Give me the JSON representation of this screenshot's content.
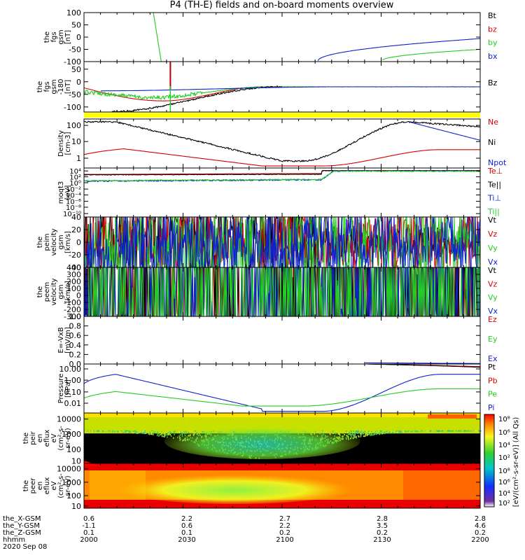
{
  "title": "P4 (TH-E) fields and on-board moments overview",
  "colors": {
    "black": "#000000",
    "red": "#d40000",
    "green": "#22cc22",
    "blue": "#1020d0",
    "yellow": "#ffff00"
  },
  "chart_data": [
    {
      "type": "line",
      "ylabel": [
        "the",
        "fgs",
        "gsm",
        "[nT]"
      ],
      "ylim": [
        -100,
        100
      ],
      "ticks": [
        "100",
        "50",
        "0",
        "-50",
        "-100"
      ],
      "legend": [
        {
          "label": "Bt",
          "color": "black"
        },
        {
          "label": "bz",
          "color": "red"
        },
        {
          "label": "by",
          "color": "green"
        },
        {
          "label": "bx",
          "color": "blue"
        }
      ]
    },
    {
      "type": "line",
      "ylabel": [
        "the",
        "fgs",
        "gsm",
        "-180",
        "[nT]"
      ],
      "ylim": [
        -120,
        80
      ],
      "ticks": [
        "50",
        "0",
        "-50",
        "-100"
      ],
      "legend": [
        {
          "label": "Bz",
          "color": "black"
        }
      ]
    },
    {
      "type": "line",
      "ylabel": [
        "Density",
        "[cm-3]"
      ],
      "scale": "log",
      "ticks": [
        "100",
        "10",
        "1"
      ],
      "legend": [
        {
          "label": "Ne",
          "color": "red"
        },
        {
          "label": "Ni",
          "color": "black"
        },
        {
          "label": "Npot",
          "color": "blue"
        }
      ]
    },
    {
      "type": "line",
      "ylabel": [
        "moqt3",
        "[eV]"
      ],
      "scale": "log",
      "ticks": [
        "10⁴",
        "10²",
        "10⁰",
        "10⁻²",
        "10⁻⁴",
        "10⁻⁶",
        "10⁻⁸",
        "10⁻¹⁰"
      ],
      "legend": [
        {
          "label": "Te⊥",
          "color": "red"
        },
        {
          "label": "Te||",
          "color": "black"
        },
        {
          "label": "Ti⊥",
          "color": "blue"
        },
        {
          "label": "Ti||",
          "color": "green"
        }
      ]
    },
    {
      "type": "line",
      "ylabel": [
        "the",
        "peim",
        "velocity",
        "gsm",
        "[km/s]"
      ],
      "ylim": [
        -40,
        40
      ],
      "ticks": [
        "40",
        "20",
        "0",
        "-20",
        "-40"
      ],
      "legend": [
        {
          "label": "Vt",
          "color": "black"
        },
        {
          "label": "Vz",
          "color": "red"
        },
        {
          "label": "Vy",
          "color": "green"
        },
        {
          "label": "Vx",
          "color": "blue"
        }
      ]
    },
    {
      "type": "line",
      "ylabel": [
        "the",
        "peem",
        "velocity",
        "gsm",
        "[km/s]"
      ],
      "ylim": [
        -300,
        400
      ],
      "ticks": [
        "400",
        "300",
        "200",
        "100",
        "0",
        "-100",
        "-200",
        "-300"
      ],
      "legend": [
        {
          "label": "Vt",
          "color": "black"
        },
        {
          "label": "Vz",
          "color": "red"
        },
        {
          "label": "Vy",
          "color": "green"
        },
        {
          "label": "Vx",
          "color": "blue"
        }
      ]
    },
    {
      "type": "line",
      "ylabel": [
        "E=-VxB",
        "[mV/m]"
      ],
      "ylim": [
        0,
        1
      ],
      "ticks": [
        "1.0",
        "0.8",
        "0.6",
        "0.4",
        "0.2",
        "0.0"
      ],
      "legend": [
        {
          "label": "Ez",
          "color": "red"
        },
        {
          "label": "Ey",
          "color": "green"
        },
        {
          "label": "Ex",
          "color": "blue"
        }
      ]
    },
    {
      "type": "line",
      "ylabel": [
        "Pressure",
        "[nPa]"
      ],
      "scale": "log",
      "ticks": [
        "10.00",
        "1.00",
        "0.10",
        "0.01"
      ],
      "legend": [
        {
          "label": "Pt",
          "color": "black"
        },
        {
          "label": "Pb",
          "color": "red"
        },
        {
          "label": "Pe",
          "color": "green"
        },
        {
          "label": "Pi",
          "color": "blue"
        }
      ]
    },
    {
      "type": "heatmap",
      "ylabel": [
        "the",
        "peir",
        "en",
        "eflux",
        "eV",
        "(cm²-s-",
        "sr-eV)"
      ],
      "scale": "log",
      "ticks": [
        "10000",
        "1000",
        "100",
        "10"
      ]
    },
    {
      "type": "heatmap",
      "ylabel": [
        "the",
        "peer",
        "en",
        "eflux",
        "eV",
        "(cm²-s-",
        "sr-eV)"
      ],
      "scale": "log",
      "ticks": [
        "10000",
        "1000",
        "100",
        "10"
      ]
    }
  ],
  "colorbar": {
    "label": "[eV/(cm²-s-sr-eV)] (All Qs)",
    "ticks": [
      "10⁸",
      "10⁶",
      "10⁴",
      "10²",
      "10⁸",
      "10⁶",
      "10⁴",
      "10²"
    ]
  },
  "xaxis": {
    "rows": [
      {
        "label": "the_X-GSM",
        "values": [
          "0.6",
          "2.2",
          "2.7",
          "2.8",
          "2.8"
        ]
      },
      {
        "label": "the_Y-GSM",
        "values": [
          "-1.1",
          "0.6",
          "2.2",
          "3.5",
          "4.6"
        ]
      },
      {
        "label": "the_Z-GSM",
        "values": [
          "0.1",
          "0.1",
          "0.2",
          "0.2",
          "0.2"
        ]
      },
      {
        "label": "hhmm",
        "values": [
          "2000",
          "2030",
          "2100",
          "2130",
          "2200"
        ]
      }
    ],
    "date": "2020 Sep 08"
  }
}
